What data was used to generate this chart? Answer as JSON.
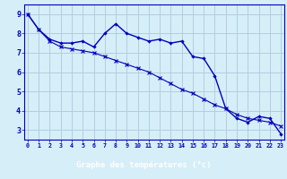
{
  "title": "Graphe des températures (°c)",
  "background_color": "#d6eef8",
  "plot_bg_color": "#d6eef8",
  "grid_color": "#b0cfe0",
  "line_color": "#0000bb",
  "xlabel_bg": "#3333aa",
  "xlabel_fg": "#ffffff",
  "x_labels": [
    "0",
    "1",
    "2",
    "3",
    "4",
    "5",
    "6",
    "7",
    "8",
    "9",
    "10",
    "11",
    "12",
    "13",
    "14",
    "15",
    "16",
    "17",
    "18",
    "19",
    "20",
    "21",
    "22",
    "23"
  ],
  "ylim": [
    2.5,
    9.5
  ],
  "xlim": [
    -0.3,
    23.3
  ],
  "yticks": [
    3,
    4,
    5,
    6,
    7,
    8,
    9
  ],
  "line1_x": [
    0,
    1,
    2,
    3,
    4,
    5,
    6,
    7,
    8,
    9,
    10,
    11,
    12,
    13,
    14,
    15,
    16,
    17,
    18,
    19,
    20,
    21,
    22,
    23
  ],
  "line1_y": [
    9.0,
    8.2,
    7.7,
    7.5,
    7.5,
    7.6,
    7.3,
    8.0,
    8.5,
    8.0,
    7.8,
    7.6,
    7.7,
    7.5,
    7.6,
    6.8,
    6.7,
    5.8,
    4.1,
    3.6,
    3.4,
    3.7,
    3.6,
    2.8
  ],
  "line2_x": [
    0,
    1,
    2,
    3,
    4,
    5,
    6,
    7,
    8,
    9,
    10,
    11,
    12,
    13,
    14,
    15,
    16,
    17,
    18,
    19,
    20,
    21,
    22,
    23
  ],
  "line2_y": [
    9.0,
    8.2,
    7.6,
    7.3,
    7.2,
    7.1,
    7.0,
    6.8,
    6.6,
    6.4,
    6.2,
    6.0,
    5.7,
    5.4,
    5.1,
    4.9,
    4.6,
    4.3,
    4.1,
    3.8,
    3.6,
    3.5,
    3.4,
    3.2
  ]
}
